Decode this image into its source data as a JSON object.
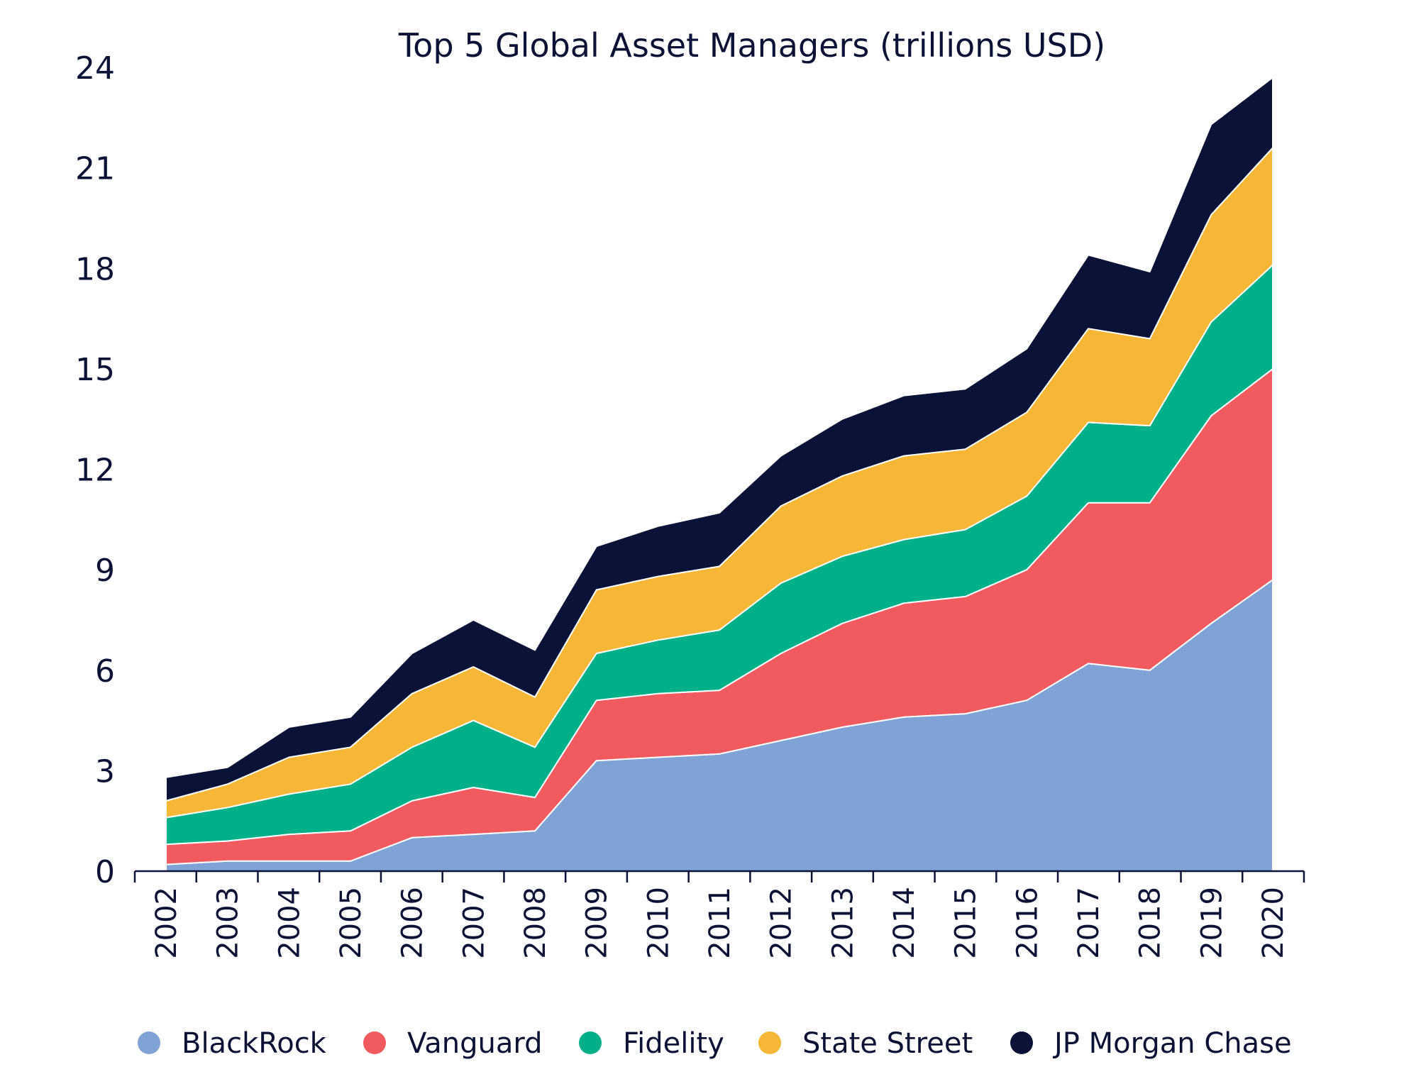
{
  "chart_data": {
    "type": "area",
    "stacked": true,
    "title": "Top 5 Global Asset Managers (trillions USD)",
    "xlabel": "",
    "ylabel": "",
    "ylim": [
      0,
      24
    ],
    "yticks": [
      "0",
      "3",
      "6",
      "9",
      "12",
      "15",
      "18",
      "21",
      "24"
    ],
    "categories": [
      "2002",
      "2003",
      "2004",
      "2005",
      "2006",
      "2007",
      "2008",
      "2009",
      "2010",
      "2011",
      "2012",
      "2013",
      "2014",
      "2015",
      "2016",
      "2017",
      "2018",
      "2019",
      "2020"
    ],
    "grid": false,
    "legend_position": "bottom",
    "series": [
      {
        "name": "BlackRock",
        "color": "#7fa3d5",
        "values": [
          0.2,
          0.3,
          0.3,
          0.3,
          1.0,
          1.1,
          1.2,
          3.3,
          3.4,
          3.5,
          3.9,
          4.3,
          4.6,
          4.7,
          5.1,
          6.2,
          6.0,
          7.4,
          8.7
        ]
      },
      {
        "name": "Vanguard",
        "color": "#f15a5f",
        "values": [
          0.6,
          0.6,
          0.8,
          0.9,
          1.1,
          1.4,
          1.0,
          1.8,
          1.9,
          1.9,
          2.6,
          3.1,
          3.4,
          3.5,
          3.9,
          4.8,
          5.0,
          6.2,
          6.3
        ]
      },
      {
        "name": "Fidelity",
        "color": "#00b088",
        "values": [
          0.8,
          1.0,
          1.2,
          1.4,
          1.6,
          2.0,
          1.5,
          1.4,
          1.6,
          1.8,
          2.1,
          2.0,
          1.9,
          2.0,
          2.2,
          2.4,
          2.3,
          2.8,
          3.1
        ]
      },
      {
        "name": "State Street",
        "color": "#f6b636",
        "values": [
          0.5,
          0.7,
          1.1,
          1.1,
          1.6,
          1.6,
          1.5,
          1.9,
          1.9,
          1.9,
          2.3,
          2.4,
          2.5,
          2.4,
          2.5,
          2.8,
          2.6,
          3.2,
          3.5
        ]
      },
      {
        "name": "JP Morgan Chase",
        "color": "#0b1238",
        "values": [
          0.7,
          0.5,
          0.9,
          0.9,
          1.2,
          1.4,
          1.4,
          1.3,
          1.5,
          1.6,
          1.5,
          1.7,
          1.8,
          1.8,
          1.9,
          2.2,
          2.0,
          2.7,
          2.1
        ]
      }
    ]
  }
}
